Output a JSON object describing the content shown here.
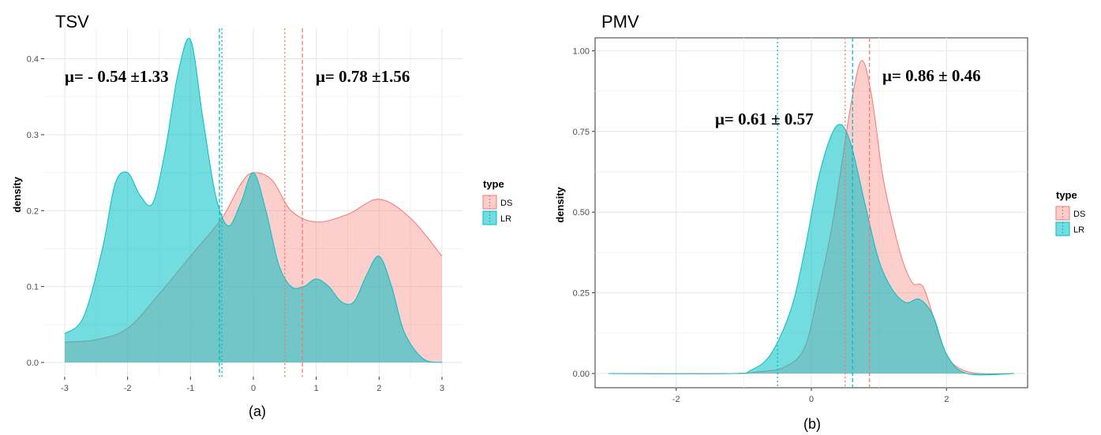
{
  "chart_data": [
    {
      "type": "area",
      "title": "TSV",
      "caption": "(a)",
      "xlabel": "",
      "ylabel": "density",
      "xlim": [
        -3,
        3
      ],
      "ylim": [
        0,
        0.44
      ],
      "xticks": [
        -3,
        -2,
        -1,
        0,
        1,
        2,
        3
      ],
      "yticks": [
        0.0,
        0.1,
        0.2,
        0.3,
        0.4
      ],
      "ytick_labels": [
        "0.0",
        "0.1",
        "0.2",
        "0.3",
        "0.4"
      ],
      "grid": true,
      "legend": {
        "title": "type",
        "placement": "right",
        "entries": [
          "DS",
          "LR"
        ]
      },
      "series": [
        {
          "name": "DS",
          "color": "#f8766d",
          "fill": "rgba(248,118,109,0.35)",
          "x": [
            -3,
            -2.5,
            -2,
            -1.5,
            -1,
            -0.5,
            -0.2,
            0,
            0.3,
            0.6,
            1,
            1.5,
            2,
            2.5,
            3
          ],
          "y": [
            0.027,
            0.03,
            0.045,
            0.09,
            0.14,
            0.19,
            0.235,
            0.25,
            0.24,
            0.2,
            0.185,
            0.195,
            0.215,
            0.19,
            0.14
          ],
          "vlines": [
            {
              "x": 0.78,
              "style": "dashed"
            },
            {
              "x": 0.5,
              "style": "dotted"
            }
          ]
        },
        {
          "name": "LR",
          "color": "#00bfc4",
          "fill": "rgba(0,191,196,0.55)",
          "x": [
            -3,
            -2.7,
            -2.4,
            -2.2,
            -2,
            -1.8,
            -1.6,
            -1.4,
            -1.2,
            -1,
            -0.8,
            -0.6,
            -0.4,
            -0.2,
            0,
            0.2,
            0.4,
            0.6,
            0.8,
            1,
            1.2,
            1.4,
            1.6,
            1.8,
            2,
            2.2,
            2.4,
            2.7,
            3
          ],
          "y": [
            0.038,
            0.06,
            0.15,
            0.235,
            0.25,
            0.22,
            0.21,
            0.28,
            0.38,
            0.425,
            0.32,
            0.22,
            0.18,
            0.21,
            0.25,
            0.2,
            0.13,
            0.1,
            0.1,
            0.11,
            0.1,
            0.08,
            0.08,
            0.115,
            0.14,
            0.1,
            0.04,
            0.005,
            0.0
          ],
          "vlines": [
            {
              "x": -0.54,
              "style": "dashed"
            },
            {
              "x": -0.5,
              "style": "dotted"
            }
          ]
        }
      ],
      "annotations": [
        "μ= - 0.54 ±1.33",
        "μ= 0.78 ±1.56"
      ]
    },
    {
      "type": "area",
      "title": "PMV",
      "caption": "(b)",
      "xlabel": "",
      "ylabel": "density",
      "xlim": [
        -3.2,
        3.2
      ],
      "ylim": [
        0,
        1.0
      ],
      "xticks": [
        -2,
        0,
        2
      ],
      "yticks": [
        0.0,
        0.25,
        0.5,
        0.75,
        1.0
      ],
      "ytick_labels": [
        "0.00",
        "0.25",
        "0.50",
        "0.75",
        "1.00"
      ],
      "grid": true,
      "legend": {
        "title": "type",
        "placement": "right",
        "entries": [
          "DS",
          "LR"
        ]
      },
      "series": [
        {
          "name": "DS",
          "color": "#f8766d",
          "fill": "rgba(248,118,109,0.35)",
          "x": [
            -3,
            -1.2,
            -0.8,
            -0.4,
            -0.1,
            0.1,
            0.3,
            0.45,
            0.6,
            0.75,
            0.9,
            1.05,
            1.2,
            1.35,
            1.5,
            1.65,
            1.8,
            2.0,
            2.2,
            2.5,
            3
          ],
          "y": [
            0,
            0,
            0.005,
            0.02,
            0.08,
            0.25,
            0.45,
            0.65,
            0.85,
            0.97,
            0.85,
            0.62,
            0.47,
            0.35,
            0.28,
            0.27,
            0.18,
            0.06,
            0.015,
            0,
            0
          ],
          "vlines": [
            {
              "x": 0.86,
              "style": "dashed"
            },
            {
              "x": 0.5,
              "style": "dotted"
            }
          ]
        },
        {
          "name": "LR",
          "color": "#00bfc4",
          "fill": "rgba(0,191,196,0.55)",
          "x": [
            -3,
            -1.2,
            -0.9,
            -0.6,
            -0.3,
            -0.1,
            0.1,
            0.3,
            0.45,
            0.6,
            0.8,
            1.0,
            1.2,
            1.4,
            1.6,
            1.8,
            2.0,
            2.3,
            3
          ],
          "y": [
            0,
            0,
            0.01,
            0.06,
            0.2,
            0.38,
            0.6,
            0.74,
            0.77,
            0.7,
            0.52,
            0.35,
            0.26,
            0.22,
            0.23,
            0.18,
            0.06,
            0,
            0
          ],
          "vlines": [
            {
              "x": 0.61,
              "style": "dashed"
            },
            {
              "x": -0.5,
              "style": "dotted"
            }
          ]
        }
      ],
      "annotations": [
        "μ= 0.61 ± 0.57",
        "μ= 0.86 ± 0.46"
      ]
    }
  ]
}
